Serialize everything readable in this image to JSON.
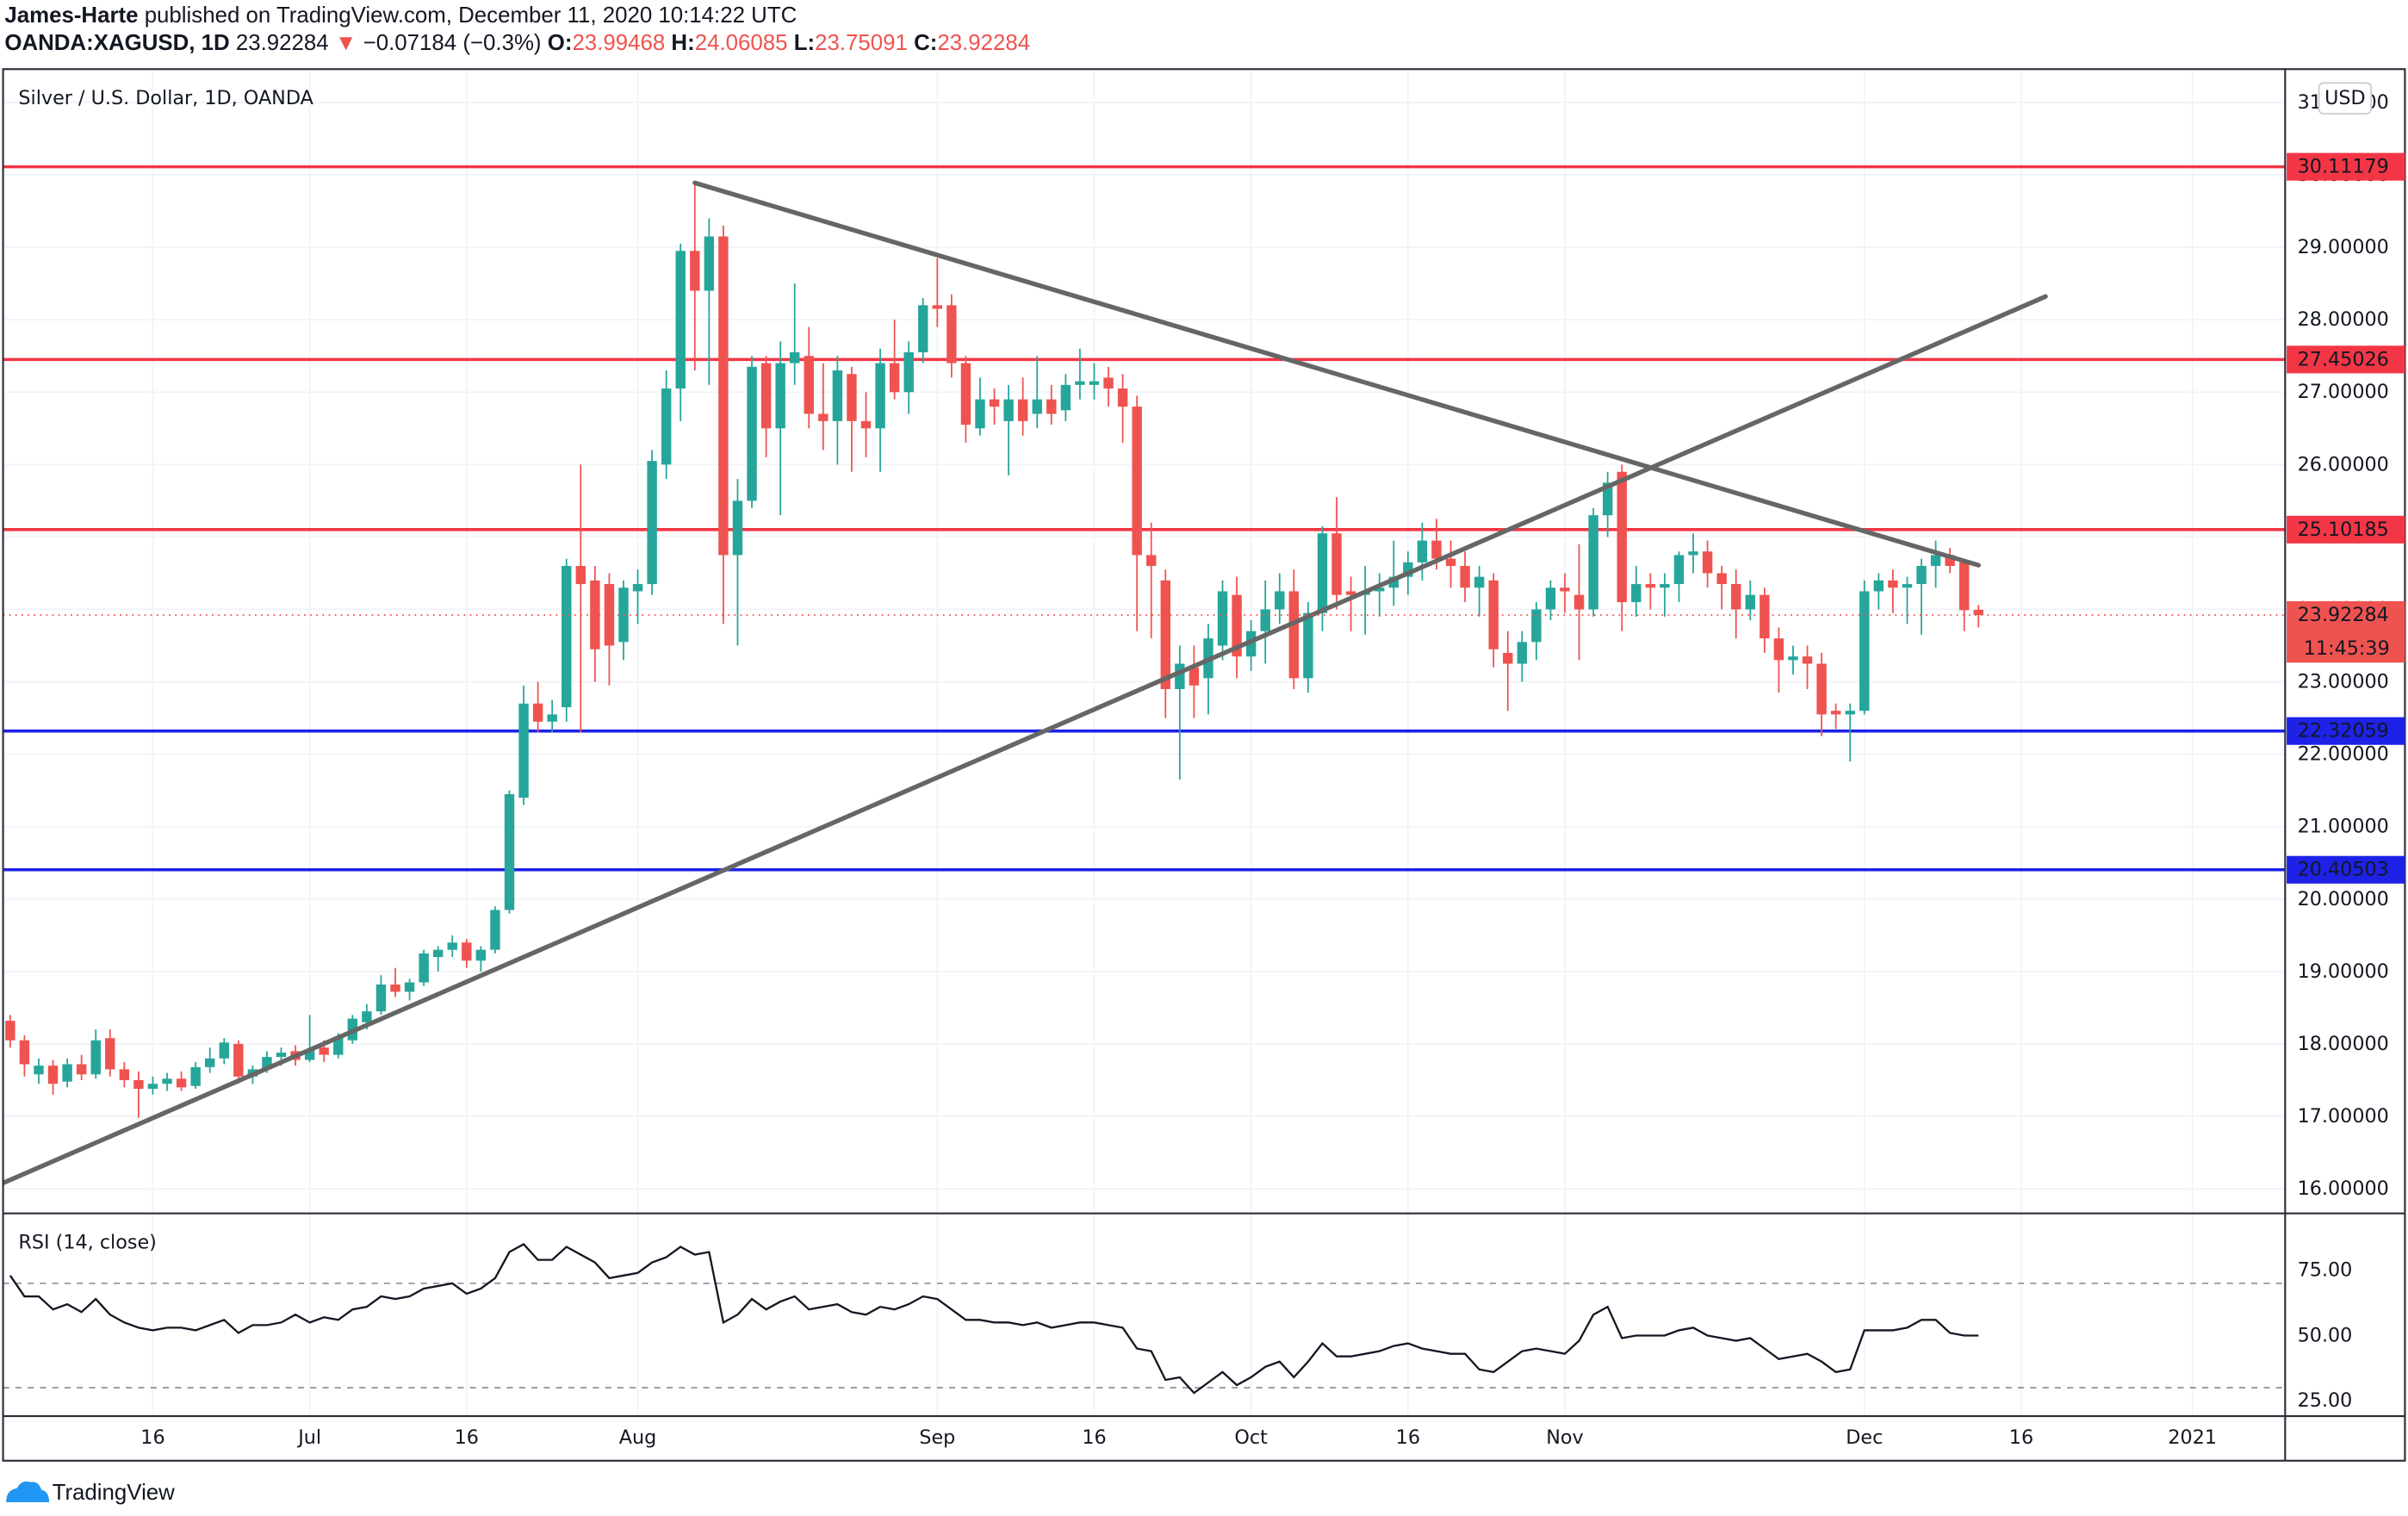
{
  "header": {
    "author": "James-Harte",
    "publisher": "published on TradingView.com, December 11, 2020 10:14:22 UTC",
    "symbol": "OANDA:XAGUSD, 1D",
    "change_arrow": "▼",
    "change": "−0.07184 (−0.3%)",
    "ohlc_labels": [
      "O:",
      "H:",
      "L:",
      "C:"
    ]
  },
  "footer": {
    "brand": "TradingView"
  },
  "chart_data": [
    {
      "type": "candlestick",
      "title": "Silver / U.S. Dollar, 1D, OANDA",
      "currency": "USD",
      "countdown": "11:45:39",
      "up_color": "#26a69a",
      "down_color": "#ef5350",
      "grid": true,
      "categories": [
        null,
        null,
        null,
        null,
        null,
        null,
        null,
        null,
        null,
        null,
        "16",
        null,
        null,
        null,
        null,
        null,
        null,
        null,
        null,
        null,
        null,
        "Jul",
        null,
        null,
        null,
        null,
        null,
        null,
        null,
        null,
        null,
        null,
        "16",
        null,
        null,
        null,
        null,
        null,
        null,
        null,
        null,
        null,
        null,
        null,
        "Aug",
        null,
        null,
        null,
        null,
        null,
        null,
        null,
        null,
        null,
        null,
        null,
        null,
        null,
        null,
        null,
        null,
        null,
        null,
        null,
        null,
        "Sep",
        null,
        null,
        null,
        null,
        null,
        null,
        null,
        null,
        null,
        null,
        "16",
        null,
        null,
        null,
        null,
        null,
        null,
        null,
        null,
        null,
        null,
        "Oct",
        null,
        null,
        null,
        null,
        null,
        null,
        null,
        null,
        null,
        null,
        "16",
        null,
        null,
        null,
        null,
        null,
        null,
        null,
        null,
        null,
        null,
        "Nov",
        null,
        null,
        null,
        null,
        null,
        null,
        null,
        null,
        null,
        null,
        null,
        null,
        null,
        null,
        null,
        null,
        null,
        null,
        null,
        null,
        "Dec",
        null,
        null,
        null,
        null,
        null,
        null,
        null,
        null,
        null,
        null,
        "16",
        null,
        null,
        null,
        null,
        null,
        null,
        null,
        null,
        null,
        null,
        null,
        "2021",
        null,
        null,
        null,
        null,
        null,
        null
      ],
      "open": [
        18.32,
        18.05,
        17.58,
        17.7,
        17.48,
        17.72,
        17.58,
        18.08,
        17.65,
        17.5,
        17.38,
        17.45,
        17.52,
        17.42,
        17.68,
        17.8,
        18.0,
        17.55,
        17.65,
        17.82,
        17.9,
        17.78,
        17.95,
        17.85,
        18.05,
        18.3,
        18.45,
        18.82,
        18.72,
        18.85,
        19.2,
        19.3,
        19.4,
        19.15,
        19.3,
        19.85,
        21.4,
        22.7,
        22.45,
        22.65,
        24.6,
        24.4,
        24.35,
        23.55,
        24.25,
        24.35,
        26.0,
        27.05,
        28.95,
        28.4,
        29.15,
        24.75,
        25.5,
        27.4,
        26.5,
        27.4,
        27.5,
        26.7,
        26.6,
        27.25,
        26.6,
        26.5,
        27.4,
        27.0,
        27.55,
        28.2,
        28.2,
        27.4,
        26.5,
        26.9,
        26.6,
        26.9,
        26.7,
        26.9,
        26.75,
        27.1,
        27.1,
        27.2,
        27.05,
        26.8,
        24.75,
        24.4,
        22.9,
        23.2,
        23.05,
        23.5,
        24.2,
        23.35,
        23.7,
        24.0,
        24.25,
        23.05,
        23.95,
        25.05,
        24.25,
        24.2,
        24.25,
        24.3,
        24.45,
        24.65,
        24.95,
        24.7,
        24.6,
        24.3,
        24.4,
        23.4,
        23.25,
        23.55,
        24.0,
        24.3,
        24.2,
        24.0,
        25.3,
        25.9,
        24.1,
        24.35,
        24.3,
        24.35,
        24.75,
        24.8,
        24.5,
        24.35,
        24.0,
        24.2,
        23.6,
        23.3,
        23.35,
        23.25,
        22.6,
        22.55,
        22.6,
        24.25,
        24.4,
        24.3,
        24.35,
        24.6,
        24.75,
        24.65,
        23.99468,
        null,
        null,
        null,
        null,
        null,
        null,
        null,
        null,
        null,
        null,
        null,
        null,
        null,
        null,
        null,
        null,
        null,
        null,
        null,
        null,
        null
      ],
      "high": [
        18.4,
        18.12,
        17.8,
        17.78,
        17.8,
        17.85,
        18.2,
        18.2,
        17.75,
        17.62,
        17.55,
        17.6,
        17.62,
        17.75,
        17.95,
        18.08,
        18.05,
        17.7,
        17.9,
        17.95,
        17.98,
        18.4,
        18.05,
        18.15,
        18.4,
        18.55,
        18.95,
        19.05,
        18.9,
        19.3,
        19.35,
        19.5,
        19.45,
        19.35,
        19.9,
        21.5,
        22.95,
        23.0,
        22.75,
        24.7,
        26.0,
        24.6,
        24.5,
        24.4,
        24.55,
        26.2,
        27.3,
        29.05,
        29.9,
        29.4,
        29.3,
        25.8,
        27.5,
        27.5,
        27.7,
        28.5,
        27.9,
        27.4,
        27.5,
        27.35,
        27.0,
        27.6,
        28.0,
        27.7,
        28.3,
        28.85,
        28.35,
        27.5,
        27.2,
        27.05,
        27.1,
        27.2,
        27.5,
        27.1,
        27.25,
        27.6,
        27.4,
        27.35,
        27.25,
        26.95,
        25.2,
        24.55,
        23.5,
        23.5,
        23.8,
        24.4,
        24.45,
        23.85,
        24.4,
        24.5,
        24.55,
        24.1,
        25.15,
        25.55,
        24.45,
        24.6,
        24.5,
        24.95,
        24.8,
        25.2,
        25.25,
        24.95,
        24.8,
        24.6,
        24.5,
        23.7,
        23.7,
        24.1,
        24.4,
        24.5,
        24.9,
        25.4,
        25.9,
        26.0,
        24.6,
        24.5,
        24.5,
        24.8,
        25.05,
        24.95,
        24.6,
        24.55,
        24.4,
        24.3,
        23.75,
        23.5,
        23.5,
        23.4,
        22.7,
        22.7,
        24.4,
        24.5,
        24.55,
        24.45,
        24.7,
        24.95,
        24.85,
        24.7,
        24.06085,
        null,
        null,
        null,
        null,
        null,
        null,
        null,
        null,
        null,
        null,
        null,
        null,
        null,
        null,
        null,
        null,
        null,
        null,
        null,
        null,
        null
      ],
      "low": [
        17.95,
        17.55,
        17.45,
        17.3,
        17.4,
        17.5,
        17.52,
        17.55,
        17.4,
        16.98,
        17.3,
        17.35,
        17.35,
        17.38,
        17.6,
        17.72,
        17.45,
        17.45,
        17.6,
        17.7,
        17.7,
        17.75,
        17.75,
        17.8,
        18.0,
        18.2,
        18.4,
        18.65,
        18.6,
        18.8,
        19.0,
        19.2,
        19.05,
        19.0,
        19.25,
        19.8,
        21.3,
        22.3,
        22.3,
        22.45,
        22.3,
        23.0,
        22.95,
        23.3,
        23.8,
        24.2,
        25.8,
        26.6,
        27.3,
        27.1,
        23.8,
        23.5,
        25.4,
        26.1,
        25.3,
        27.1,
        26.5,
        26.2,
        26.0,
        25.9,
        26.1,
        25.9,
        26.9,
        26.7,
        27.4,
        27.9,
        27.2,
        26.3,
        26.4,
        26.55,
        25.85,
        26.4,
        26.5,
        26.55,
        26.6,
        26.9,
        26.9,
        26.8,
        26.3,
        23.7,
        23.6,
        22.5,
        21.65,
        22.5,
        22.55,
        23.3,
        23.05,
        23.15,
        23.25,
        23.8,
        22.9,
        22.85,
        23.7,
        24.0,
        23.7,
        23.65,
        23.9,
        24.05,
        24.2,
        24.4,
        24.55,
        24.3,
        24.1,
        23.9,
        23.2,
        22.6,
        23.0,
        23.3,
        23.85,
        23.95,
        23.3,
        23.9,
        25.0,
        23.7,
        23.9,
        24.0,
        23.9,
        24.1,
        24.5,
        24.3,
        24.0,
        23.6,
        23.85,
        23.4,
        22.85,
        23.1,
        22.9,
        22.25,
        22.35,
        21.9,
        22.55,
        24.0,
        23.95,
        23.8,
        23.65,
        24.3,
        24.5,
        23.7,
        23.75091,
        null,
        null,
        null,
        null,
        null,
        null,
        null,
        null,
        null,
        null,
        null,
        null,
        null,
        null,
        null,
        null,
        null,
        null,
        null,
        null,
        null
      ],
      "close": [
        18.05,
        17.72,
        17.7,
        17.45,
        17.72,
        17.58,
        18.05,
        17.65,
        17.5,
        17.38,
        17.45,
        17.52,
        17.4,
        17.68,
        17.8,
        18.02,
        17.55,
        17.65,
        17.82,
        17.88,
        17.78,
        17.92,
        17.85,
        18.1,
        18.35,
        18.45,
        18.82,
        18.72,
        18.85,
        19.25,
        19.3,
        19.4,
        19.15,
        19.3,
        19.85,
        21.45,
        22.7,
        22.45,
        22.55,
        24.6,
        24.35,
        23.45,
        23.5,
        24.3,
        24.35,
        26.05,
        27.05,
        28.95,
        28.4,
        29.15,
        24.75,
        25.5,
        27.35,
        26.5,
        27.4,
        27.55,
        26.7,
        26.6,
        27.3,
        26.6,
        26.5,
        27.4,
        27.0,
        27.55,
        28.2,
        28.15,
        27.4,
        26.55,
        26.9,
        26.8,
        26.9,
        26.6,
        26.9,
        26.7,
        27.1,
        27.15,
        27.15,
        27.05,
        26.8,
        24.75,
        24.6,
        22.9,
        23.25,
        22.95,
        23.6,
        24.25,
        23.35,
        23.7,
        24.0,
        24.25,
        23.05,
        23.95,
        25.05,
        24.2,
        24.2,
        24.25,
        24.3,
        24.45,
        24.65,
        24.95,
        24.7,
        24.6,
        24.3,
        24.45,
        23.45,
        23.25,
        23.55,
        24.0,
        24.3,
        24.25,
        24.0,
        25.3,
        25.75,
        24.1,
        24.35,
        24.3,
        24.35,
        24.75,
        24.8,
        24.5,
        24.35,
        24.0,
        24.2,
        23.6,
        23.3,
        23.35,
        23.25,
        22.55,
        22.55,
        22.6,
        24.25,
        24.4,
        24.3,
        24.35,
        24.6,
        24.75,
        24.6,
        23.99,
        23.92284,
        null,
        null,
        null,
        null,
        null,
        null,
        null,
        null,
        null,
        null,
        null,
        null,
        null,
        null,
        null,
        null,
        null,
        null,
        null,
        null,
        null
      ],
      "ylim": [
        15.66,
        31.46
      ],
      "yticks": [
        {
          "value": 16,
          "label": "16.00000"
        },
        {
          "value": 17,
          "label": "17.00000"
        },
        {
          "value": 18,
          "label": "18.00000"
        },
        {
          "value": 19,
          "label": "19.00000"
        },
        {
          "value": 20,
          "label": "20.00000"
        },
        {
          "value": 21,
          "label": "21.00000"
        },
        {
          "value": 22,
          "label": "22.00000"
        },
        {
          "value": 23,
          "label": "23.00000"
        },
        {
          "value": 24,
          "label": "24.00000"
        },
        {
          "value": 25,
          "label": "25.00000"
        },
        {
          "value": 26,
          "label": "26.00000"
        },
        {
          "value": 27,
          "label": "27.00000"
        },
        {
          "value": 28,
          "label": "28.00000"
        },
        {
          "value": 29,
          "label": "29.00000"
        },
        {
          "value": 30,
          "label": "30.00000"
        },
        {
          "value": 31,
          "label": "31.00000"
        }
      ],
      "levels": [
        {
          "value": 30.11179,
          "color": "#f23645"
        },
        {
          "value": 27.45026,
          "color": "#f23645"
        },
        {
          "value": 25.10185,
          "color": "#f23645"
        },
        {
          "value": 22.32059,
          "color": "#1e22e6"
        },
        {
          "value": 20.40503,
          "color": "#1e22e6"
        }
      ],
      "trendlines": [
        {
          "x": [
            48,
            138
          ],
          "y": [
            29.89,
            24.61
          ],
          "color": "#666666"
        },
        {
          "x": [
            -0.5,
            142.7
          ],
          "y": [
            16.08,
            28.32
          ],
          "color": "#666666"
        }
      ]
    },
    {
      "type": "line",
      "title": "RSI (14, close)",
      "color": "#131722",
      "values": [
        73,
        65,
        65,
        60,
        62,
        59,
        64,
        58,
        55,
        53,
        52,
        53,
        53,
        52,
        54,
        56,
        51,
        54,
        54,
        55,
        58,
        55,
        57,
        56,
        60,
        61,
        65,
        64,
        65,
        68,
        69,
        70,
        66,
        68,
        72,
        82,
        85,
        79,
        79,
        84,
        81,
        78,
        72,
        73,
        74,
        78,
        80,
        84,
        81,
        82,
        55,
        58,
        64,
        60,
        63,
        65,
        60,
        61,
        62,
        59,
        58,
        61,
        60,
        62,
        65,
        64,
        60,
        56,
        56,
        55,
        55,
        54,
        55,
        53,
        54,
        55,
        55,
        54,
        53,
        45,
        44,
        33,
        34,
        28,
        32,
        36,
        31,
        34,
        38,
        40,
        34,
        40,
        47,
        42,
        42,
        43,
        44,
        46,
        47,
        45,
        44,
        43,
        43,
        37,
        36,
        40,
        44,
        45,
        44,
        43,
        48,
        58,
        61,
        49,
        50,
        50,
        50,
        52,
        53,
        50,
        49,
        48,
        49,
        45,
        41,
        42,
        43,
        40,
        36,
        37,
        52,
        52,
        52,
        53,
        56,
        56,
        51,
        50,
        50,
        null,
        null,
        null,
        null,
        null,
        null,
        null,
        null,
        null,
        null,
        null,
        null,
        null,
        null,
        null,
        null,
        null,
        null,
        null,
        null,
        null
      ],
      "ylim": [
        19.1,
        96.8
      ],
      "yticks": [
        {
          "value": 25,
          "label": "25.00"
        },
        {
          "value": 50,
          "label": "50.00"
        },
        {
          "value": 75,
          "label": "75.00"
        }
      ],
      "bands": [
        70,
        30
      ]
    }
  ]
}
